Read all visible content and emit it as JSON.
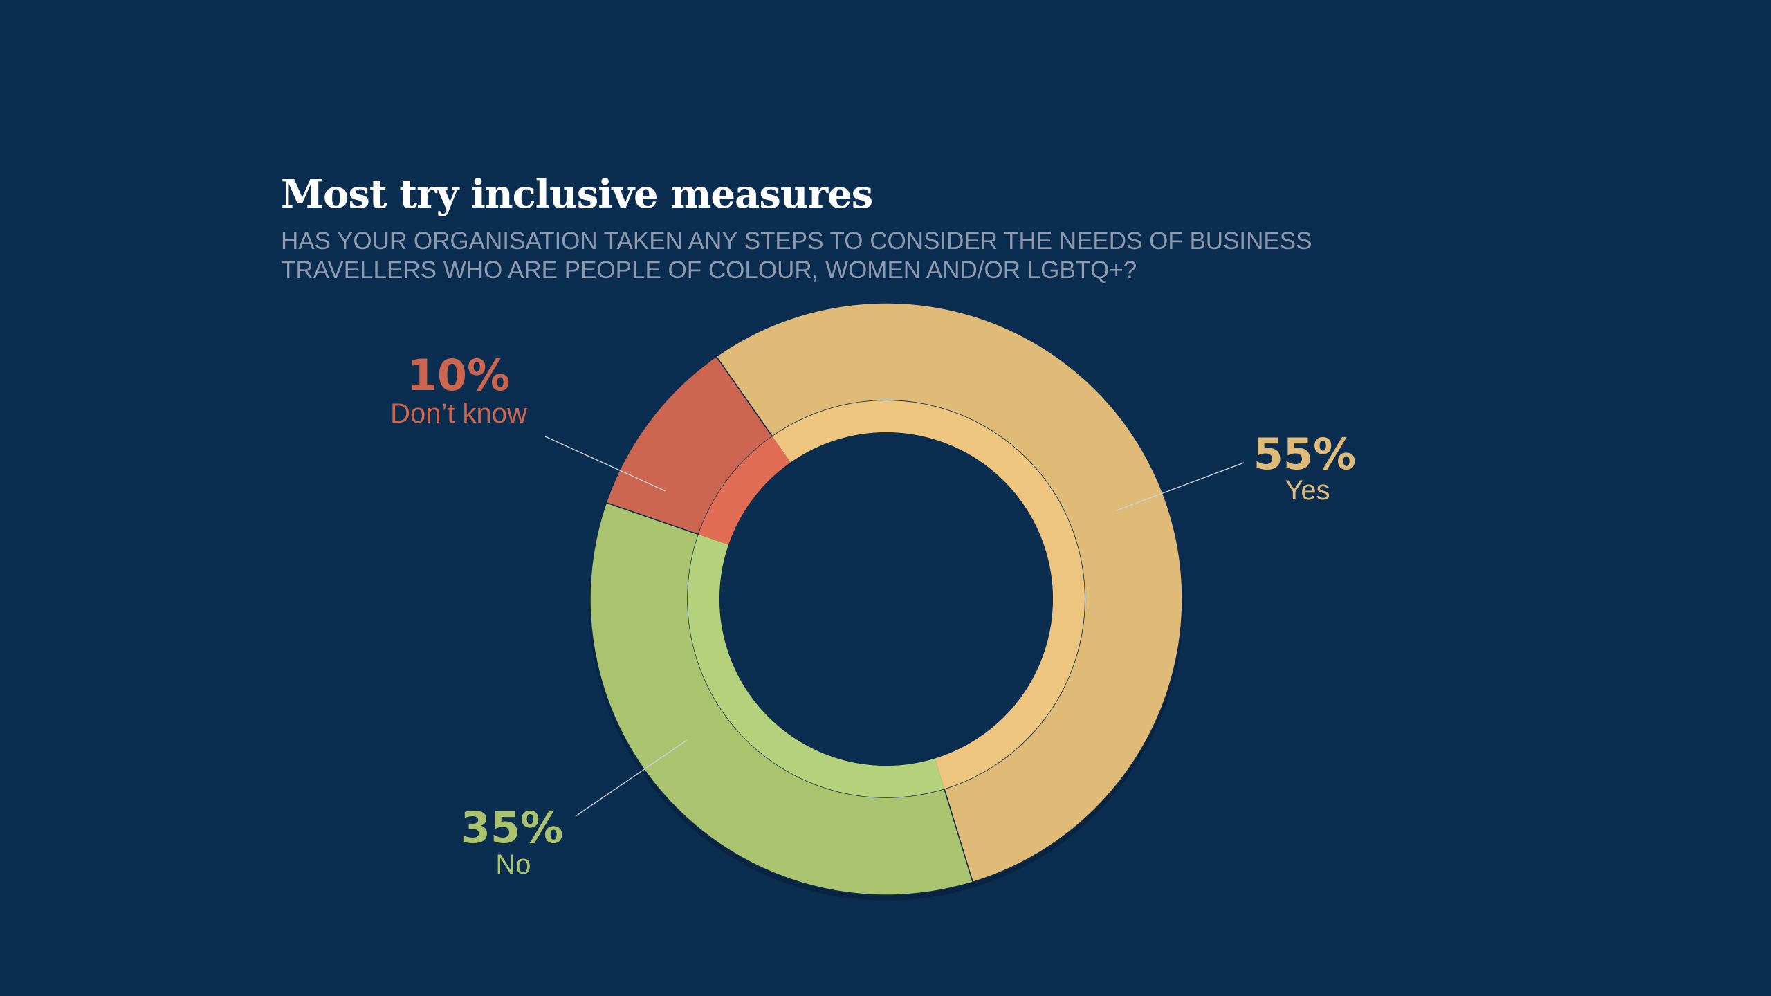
{
  "title": "Most try inclusive measures",
  "subtitle_lines": [
    "HAS YOUR ORGANISATION TAKEN ANY STEPS TO CONSIDER THE NEEDS OF BUSINESS",
    "TRAVELLERS WHO ARE PEOPLE OF COLOUR, WOMEN AND/OR LGBTQ+?"
  ],
  "colors": {
    "background": "#0b2d50",
    "title": "#ffffff",
    "subtitle": "#8d9ab0"
  },
  "chart_data": {
    "type": "pie",
    "variant": "donut",
    "title": "Most try inclusive measures",
    "categories": [
      "Yes",
      "No",
      "Don’t know"
    ],
    "values": [
      55,
      35,
      10
    ],
    "unit": "%",
    "value_labels": [
      "55%",
      "35%",
      "10%"
    ],
    "colors": [
      "#e0bb78",
      "#a9c36f",
      "#cd6650"
    ],
    "inner_ring_colors": [
      "#eec57e",
      "#b4d17b",
      "#e16d55"
    ]
  }
}
